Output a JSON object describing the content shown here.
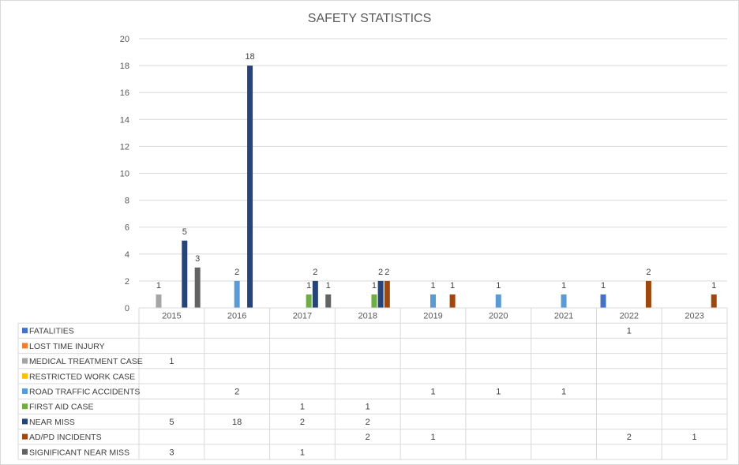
{
  "chart_data": {
    "type": "bar",
    "title": "SAFETY STATISTICS",
    "xlabel": "",
    "ylabel": "",
    "ylim": [
      0,
      20
    ],
    "yticks": [
      "0",
      "2",
      "4",
      "6",
      "8",
      "10",
      "12",
      "14",
      "16",
      "18",
      "20"
    ],
    "grid": true,
    "legend": "data-table",
    "categories": [
      "2015",
      "2016",
      "2017",
      "2018",
      "2019",
      "2020",
      "2021",
      "2022",
      "2023"
    ],
    "series": [
      {
        "name": "FATALITIES",
        "color": "#4472c4",
        "values": [
          null,
          null,
          null,
          null,
          null,
          null,
          null,
          1,
          null
        ],
        "labels": [
          "",
          "",
          "",
          "",
          "",
          "",
          "",
          "1",
          ""
        ]
      },
      {
        "name": "LOST TIME INJURY",
        "color": "#ed7d31",
        "values": [
          null,
          null,
          null,
          null,
          null,
          null,
          null,
          null,
          null
        ],
        "labels": [
          "",
          "",
          "",
          "",
          "",
          "",
          "",
          "",
          ""
        ]
      },
      {
        "name": "MEDICAL TREATMENT CASE",
        "color": "#a5a5a5",
        "values": [
          1,
          null,
          null,
          null,
          null,
          null,
          null,
          null,
          null
        ],
        "labels": [
          "1",
          "",
          "",
          "",
          "",
          "",
          "",
          "",
          ""
        ]
      },
      {
        "name": "RESTRICTED WORK CASE",
        "color": "#ffc000",
        "values": [
          null,
          null,
          null,
          null,
          null,
          null,
          null,
          null,
          null
        ],
        "labels": [
          "",
          "",
          "",
          "",
          "",
          "",
          "",
          "",
          ""
        ]
      },
      {
        "name": "ROAD TRAFFIC ACCIDENTS",
        "color": "#5b9bd5",
        "values": [
          null,
          2,
          null,
          null,
          1,
          1,
          1,
          null,
          null
        ],
        "labels": [
          "",
          "2",
          "",
          "",
          "1",
          "1",
          "1",
          "",
          ""
        ]
      },
      {
        "name": "FIRST AID CASE",
        "color": "#70ad47",
        "values": [
          null,
          null,
          1,
          1,
          null,
          null,
          null,
          null,
          null
        ],
        "labels": [
          "",
          "",
          "1",
          "1",
          "",
          "",
          "",
          "",
          ""
        ]
      },
      {
        "name": "NEAR MISS",
        "color": "#264478",
        "values": [
          5,
          18,
          2,
          2,
          null,
          null,
          null,
          null,
          null
        ],
        "labels": [
          "5",
          "18",
          "2",
          "2",
          "",
          "",
          "",
          "",
          ""
        ]
      },
      {
        "name": "AD/PD INCIDENTS",
        "color": "#9e480e",
        "values": [
          null,
          null,
          null,
          2,
          1,
          null,
          null,
          2,
          1
        ],
        "labels": [
          "",
          "",
          "",
          "2",
          "1",
          "",
          "",
          "2",
          "1"
        ]
      },
      {
        "name": "SIGNIFICANT NEAR MISS",
        "color": "#636363",
        "values": [
          3,
          null,
          1,
          null,
          null,
          null,
          null,
          null,
          null
        ],
        "labels": [
          "3",
          "",
          "1",
          "",
          "",
          "",
          "",
          "",
          ""
        ]
      }
    ]
  }
}
